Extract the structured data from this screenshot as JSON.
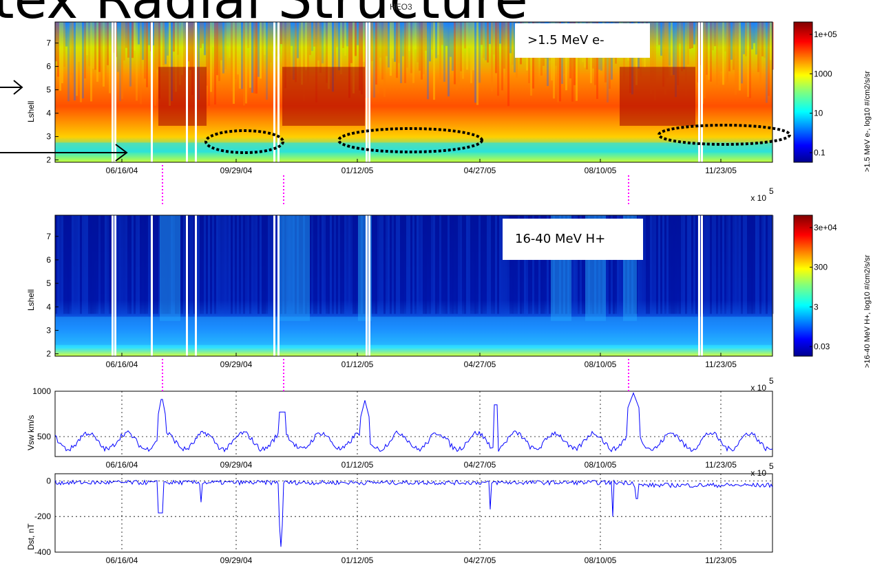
{
  "header": {
    "title": "tex Radial Structure",
    "subtitle": "HEO3"
  },
  "panels": {
    "electron_label": ">1.5 MeV e-",
    "proton_label": "16-40 MeV H+",
    "lshell_label": "Lshell",
    "electron_colorbar_label": ">1.5 MeV e-, log10 #/cm2/s/sr",
    "proton_colorbar_label": ">16-40 MeV H+, log10 #/cm2/s/sr",
    "vsw_label": "Vsw km/s",
    "dst_label": "Dst, nT",
    "exponent_label": "x 10",
    "exponent_power": "5"
  },
  "colors": {
    "trace": "#0000ff",
    "marker_line": "#ff00ff",
    "oval": "#000000"
  },
  "chart_data": [
    {
      "type": "heatmap",
      "name": "electron_flux",
      "xticks": [
        "06/16/04",
        "09/29/04",
        "01/12/05",
        "04/27/05",
        "08/10/05",
        "11/23/05"
      ],
      "ylabel": "Lshell",
      "yticks": [
        2,
        3,
        4,
        5,
        6,
        7
      ],
      "ylim": [
        1.9,
        7.9
      ],
      "colorbar_ticks": [
        "1e+05",
        "1000",
        "10",
        "0.1"
      ],
      "annotation": ">1.5 MeV e-"
    },
    {
      "type": "heatmap",
      "name": "proton_flux",
      "xticks": [
        "06/16/04",
        "09/29/04",
        "01/12/05",
        "04/27/05",
        "08/10/05",
        "11/23/05"
      ],
      "ylabel": "Lshell",
      "yticks": [
        2,
        3,
        4,
        5,
        6,
        7
      ],
      "ylim": [
        1.9,
        7.9
      ],
      "colorbar_ticks": [
        "3e+04",
        "300",
        "3",
        "0.03"
      ],
      "annotation": "16-40 MeV H+"
    },
    {
      "type": "line",
      "name": "solar_wind_speed",
      "xticks": [
        "06/16/04",
        "09/29/04",
        "01/12/05",
        "04/27/05",
        "08/10/05",
        "11/23/05"
      ],
      "ylabel": "Vsw km/s",
      "yticks": [
        500,
        1000
      ],
      "ylim": [
        280,
        1000
      ],
      "grid": true
    },
    {
      "type": "line",
      "name": "dst_index",
      "xticks": [
        "06/16/04",
        "09/29/04",
        "01/12/05",
        "04/27/05",
        "08/10/05",
        "11/23/05"
      ],
      "ylabel": "Dst, nT",
      "yticks": [
        -400,
        -200,
        0
      ],
      "ylim": [
        -400,
        40
      ],
      "grid": true
    }
  ]
}
